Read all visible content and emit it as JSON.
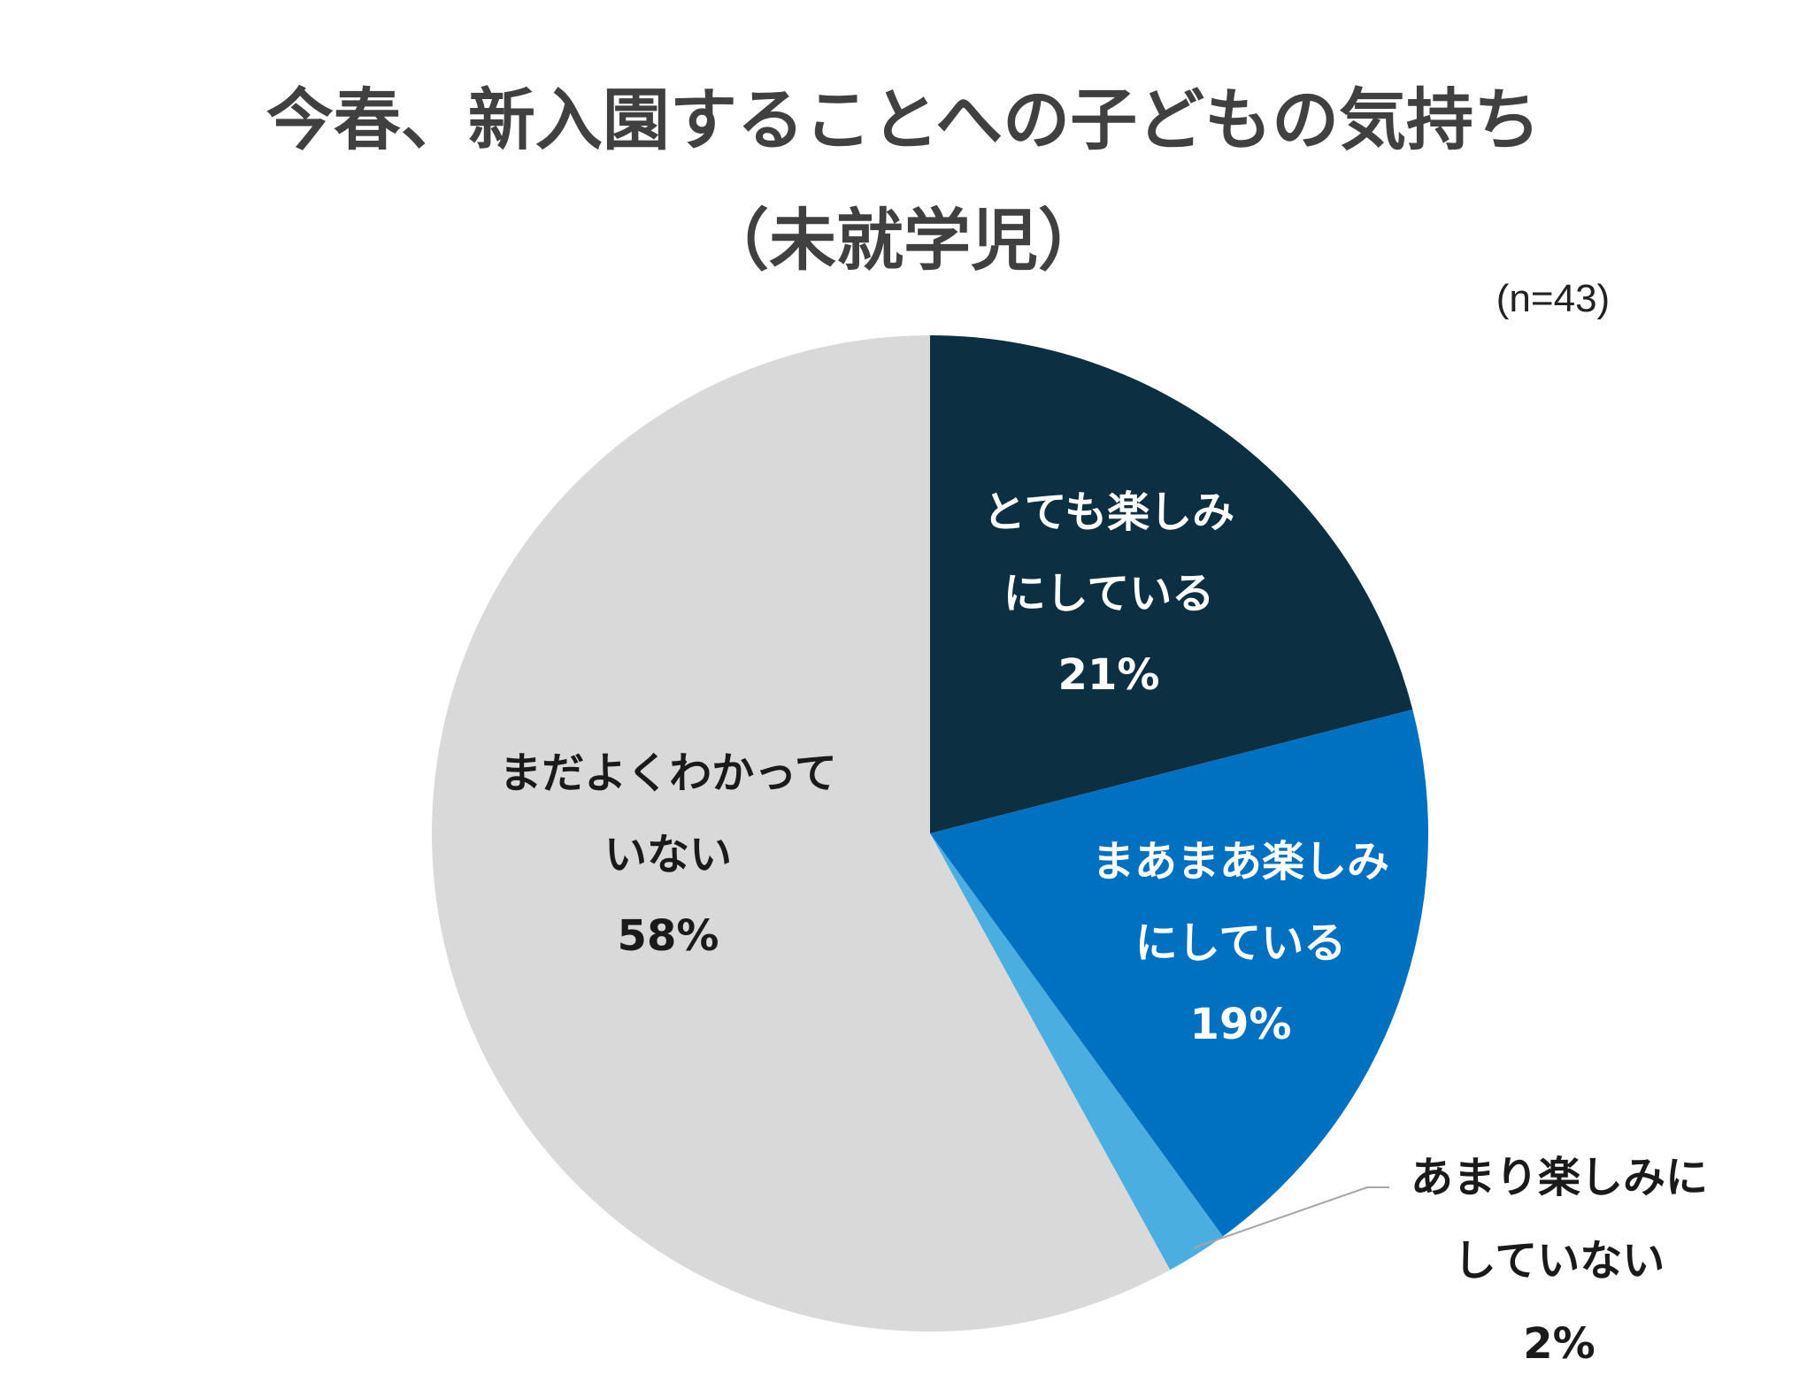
{
  "chart_data": {
    "type": "pie",
    "title_lines": [
      "今春、新入園することへの子どもの気持ち",
      "（未就学児）"
    ],
    "sample_note": "(n=43)",
    "slices": [
      {
        "label_lines": [
          "とても楽しみ",
          "にしている"
        ],
        "percent_label": "21%",
        "value": 21,
        "color": "#0d2f42",
        "label_color": "#ffffff"
      },
      {
        "label_lines": [
          "まあまあ楽しみ",
          "にしている"
        ],
        "percent_label": "19%",
        "value": 19,
        "color": "#0070c0",
        "label_color": "#ffffff"
      },
      {
        "label_lines": [
          "あまり楽しみに",
          "していない"
        ],
        "percent_label": "2%",
        "value": 2,
        "color": "#4aaee0",
        "label_color": "#1a1a1a"
      },
      {
        "label_lines": [
          "まだよくわかって",
          "いない"
        ],
        "percent_label": "58%",
        "value": 58,
        "color": "#d9d9d9",
        "label_color": "#1a1a1a"
      }
    ],
    "start": "12 o'clock",
    "direction": "clockwise",
    "legend": "none"
  }
}
